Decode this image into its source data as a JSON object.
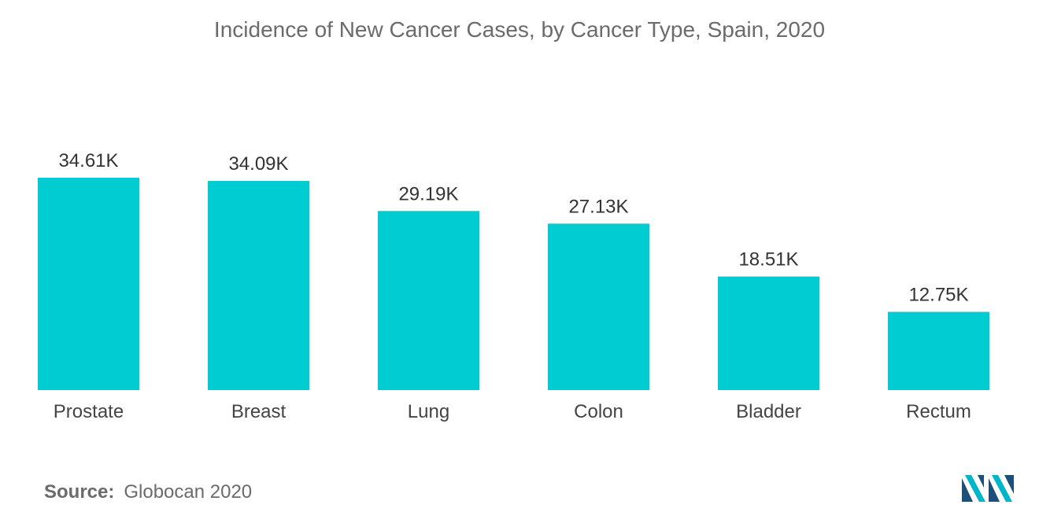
{
  "chart_data": {
    "type": "bar",
    "title": "Incidence of New Cancer Cases, by Cancer Type, Spain, 2020",
    "categories": [
      "Prostate",
      "Breast",
      "Lung",
      "Colon",
      "Bladder",
      "Rectum"
    ],
    "values": [
      34.61,
      34.09,
      29.19,
      27.13,
      18.51,
      12.75
    ],
    "value_labels": [
      "34.61K",
      "34.09K",
      "29.19K",
      "27.13K",
      "18.51K",
      "12.75K"
    ],
    "unit": "K",
    "xlabel": "",
    "ylabel": "",
    "grid": false,
    "legend": "none",
    "bar_color": "#00ccd1"
  },
  "source": {
    "label": "Source:",
    "text": "Globocan 2020"
  },
  "logo": {
    "icon": "mordor-logo-icon",
    "colors": [
      "#1e4e79",
      "#00b5c9"
    ]
  },
  "colors": {
    "title": "#6b6b6b",
    "value_label": "#333333",
    "category_label": "#444444"
  }
}
